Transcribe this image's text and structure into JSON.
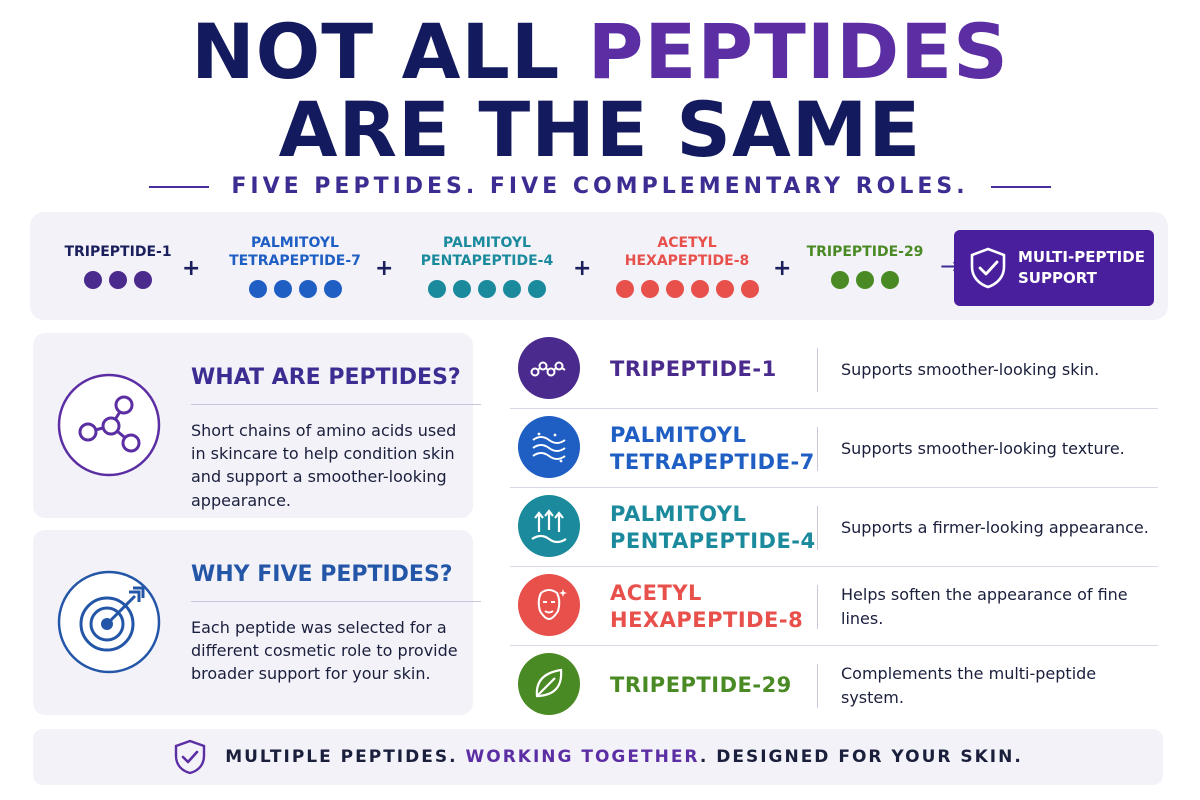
{
  "headline": {
    "line1_prefix": "NOT ALL ",
    "line1_accent": "PEPTIDES",
    "line2": "ARE THE SAME"
  },
  "subtitle": "FIVE PEPTIDES. FIVE COMPLEMENTARY ROLES.",
  "strip": {
    "peptides": [
      {
        "line1": "TRIPEPTIDE-1",
        "line2": "",
        "color": "#4a2a8c",
        "dots": 3
      },
      {
        "line1": "PALMITOYL",
        "line2": "TETRAPEPTIDE-7",
        "color": "#1f5fc4",
        "dots": 4
      },
      {
        "line1": "PALMITOYL",
        "line2": "PENTAPEPTIDE-4",
        "color": "#1a8a9c",
        "dots": 5
      },
      {
        "line1": "ACETYL",
        "line2": "HEXAPEPTIDE-8",
        "color": "#e8504c",
        "dots": 6
      },
      {
        "line1": "TRIPEPTIDE-29",
        "line2": "",
        "color": "#4a8a24",
        "dots": 3
      }
    ],
    "plus": "+",
    "arrow": "→",
    "result_line1": "MULTI-PEPTIDE",
    "result_line2": "SUPPORT"
  },
  "cards": {
    "what": {
      "title": "WHAT ARE PEPTIDES?",
      "body": "Short chains of amino acids used in skincare to help condition skin and support a smoother-looking appearance.",
      "icon": "molecule-icon"
    },
    "why": {
      "title": "WHY FIVE PEPTIDES?",
      "body": "Each peptide was selected for a different cosmetic role to provide broader support for your skin.",
      "icon": "target-icon"
    }
  },
  "rows": [
    {
      "line1": "TRIPEPTIDE-1",
      "line2": "",
      "desc": "Supports smoother-looking skin.",
      "color": "#4a2a8c",
      "icon": "chain-icon"
    },
    {
      "line1": "PALMITOYL",
      "line2": "TETRAPEPTIDE-7",
      "desc": "Supports smoother-looking texture.",
      "color": "#1f5fc4",
      "icon": "texture-waves-icon"
    },
    {
      "line1": "PALMITOYL",
      "line2": "PENTAPEPTIDE-4",
      "desc": "Supports a firmer-looking appearance.",
      "color": "#1a8a9c",
      "icon": "lift-arrows-icon"
    },
    {
      "line1": "ACETYL",
      "line2": "HEXAPEPTIDE-8",
      "desc": "Helps soften the appearance of fine lines.",
      "color": "#e8504c",
      "icon": "face-icon"
    },
    {
      "line1": "TRIPEPTIDE-29",
      "line2": "",
      "desc": "Complements the multi-peptide system.",
      "color": "#4a8a24",
      "icon": "leaf-icon"
    }
  ],
  "footer": {
    "part1": "MULTIPLE PEPTIDES. ",
    "accent": "WORKING TOGETHER",
    "part2": ". DESIGNED FOR YOUR SKIN."
  }
}
